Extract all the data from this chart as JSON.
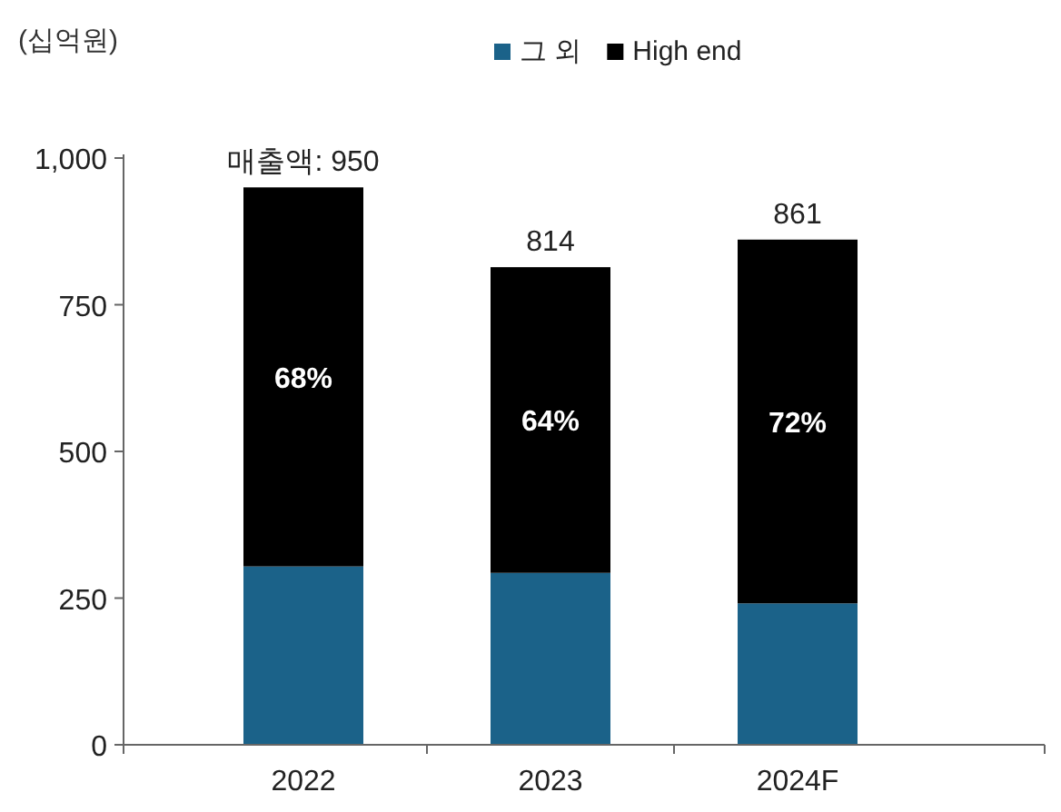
{
  "chart_data": {
    "type": "bar",
    "stacked": true,
    "ylabel": "(십억원)",
    "legend": "top",
    "categories": [
      "2022",
      "2023",
      "2024F"
    ],
    "series": [
      {
        "name": "그 외",
        "color": "#1b6289",
        "values": [
          304,
          293,
          241
        ]
      },
      {
        "name": "High end",
        "color": "#000000",
        "values": [
          646,
          521,
          620
        ]
      }
    ],
    "annotations": [
      "68%",
      "64%",
      "72%"
    ],
    "totals": [
      "매출액: 950",
      "814",
      "861"
    ],
    "ylim": [
      0,
      1000
    ],
    "yticks": [
      0,
      250,
      500,
      750,
      {
        "value": 1000,
        "label": "1,000"
      }
    ]
  }
}
